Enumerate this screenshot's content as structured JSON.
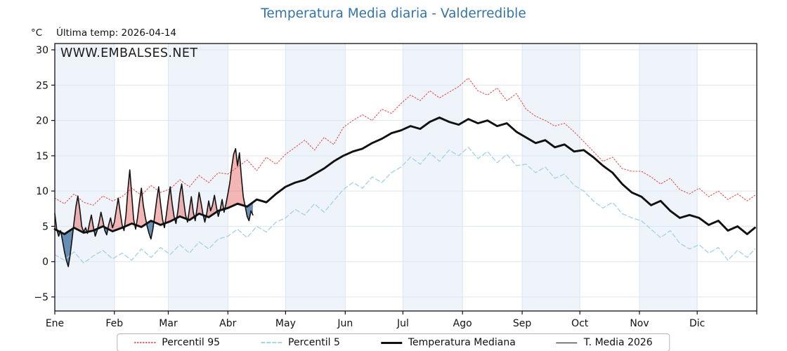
{
  "page": {
    "title": "Temperatura Media diaria - Valderredible",
    "unit_label": "°C",
    "last_temp_label": "Última temp: 2026-04-14",
    "watermark": "WWW.EMBALSES.NET"
  },
  "colors": {
    "accent": "#3274a8",
    "red_line": "#e94f4f",
    "blue_line": "#a9d3e7",
    "black_line": "#111111",
    "fill_above": "rgba(228,78,78,0.42)",
    "fill_below": "rgba(52,101,152,0.72)",
    "band": "#eef4fa",
    "grid": "#dce7f0",
    "frame": "#111111",
    "legend_border": "#b5b5b5"
  },
  "legend": {
    "items": [
      {
        "label": "Percentil 95",
        "sample": "dotted-red"
      },
      {
        "label": "Percentil 5",
        "sample": "dashed-blue"
      },
      {
        "label": "Temperatura Mediana",
        "sample": "thick-black"
      },
      {
        "label": "T. Media 2026",
        "sample": "thin-black"
      }
    ]
  },
  "chart_data": {
    "type": "line",
    "title": "Temperatura Media diaria - Valderredible",
    "xlabel": "",
    "ylabel": "°C",
    "ylim": [
      -7,
      31
    ],
    "grid": "on",
    "legend_position": "bottom center",
    "yticks": [
      -5,
      0,
      5,
      10,
      15,
      20,
      25,
      30
    ],
    "ytick_labels": [
      "−5",
      "0",
      "5",
      "10",
      "15",
      "20",
      "25",
      "30"
    ],
    "x_months": {
      "labels": [
        "Ene",
        "Feb",
        "Mar",
        "Abr",
        "May",
        "Jun",
        "Jul",
        "Ago",
        "Sep",
        "Oct",
        "Nov",
        "Dic"
      ],
      "boundaries_day_of_year": [
        0,
        31,
        59,
        90,
        120,
        151,
        181,
        212,
        243,
        273,
        304,
        334,
        365
      ]
    },
    "sample_days": [
      0,
      5,
      10,
      15,
      20,
      25,
      30,
      35,
      40,
      45,
      50,
      55,
      60,
      65,
      70,
      75,
      80,
      85,
      90,
      95,
      100,
      105,
      110,
      115,
      120,
      125,
      130,
      135,
      140,
      145,
      150,
      155,
      160,
      165,
      170,
      175,
      180,
      185,
      190,
      195,
      200,
      205,
      210,
      215,
      220,
      225,
      230,
      235,
      240,
      245,
      250,
      255,
      260,
      265,
      270,
      275,
      280,
      285,
      290,
      295,
      300,
      305,
      310,
      315,
      320,
      325,
      330,
      335,
      340,
      345,
      350,
      355,
      360,
      364
    ],
    "series": [
      {
        "name": "Percentil 95",
        "style": "dotted",
        "color": "#e94f4f",
        "values": [
          9.0,
          8.2,
          9.6,
          8.4,
          8.0,
          9.3,
          8.6,
          9.2,
          10.4,
          9.4,
          10.8,
          9.8,
          10.3,
          11.6,
          10.6,
          12.2,
          11.2,
          12.6,
          12.4,
          13.4,
          14.4,
          12.9,
          14.8,
          13.8,
          15.2,
          16.2,
          17.2,
          15.8,
          17.6,
          16.6,
          19.0,
          20.0,
          20.8,
          20.0,
          21.6,
          21.0,
          22.4,
          23.6,
          22.8,
          24.2,
          23.2,
          24.0,
          24.8,
          26.0,
          24.2,
          23.6,
          24.6,
          22.8,
          23.8,
          21.6,
          20.6,
          20.0,
          19.2,
          19.6,
          18.4,
          17.0,
          15.6,
          14.2,
          14.8,
          13.2,
          12.8,
          12.8,
          12.0,
          11.0,
          11.8,
          10.2,
          9.6,
          10.4,
          9.2,
          10.0,
          8.8,
          9.6,
          8.6,
          9.4
        ]
      },
      {
        "name": "Percentil 5",
        "style": "dashed",
        "color": "#a9d3e7",
        "values": [
          1.0,
          0.2,
          1.4,
          -0.2,
          0.8,
          1.6,
          0.4,
          1.2,
          0.2,
          1.8,
          0.6,
          2.0,
          1.0,
          2.4,
          1.2,
          2.8,
          1.8,
          3.2,
          3.6,
          4.6,
          3.4,
          5.0,
          4.2,
          5.6,
          6.2,
          7.4,
          6.6,
          8.2,
          7.0,
          8.6,
          10.2,
          11.2,
          10.4,
          12.0,
          11.2,
          12.6,
          13.4,
          14.8,
          13.8,
          15.4,
          14.2,
          15.8,
          15.0,
          16.2,
          14.6,
          15.6,
          14.0,
          15.2,
          13.6,
          13.8,
          12.6,
          13.4,
          11.8,
          12.4,
          10.8,
          10.0,
          8.6,
          7.6,
          8.4,
          6.8,
          6.2,
          5.8,
          4.6,
          3.4,
          4.4,
          2.6,
          1.8,
          2.4,
          1.2,
          2.0,
          0.2,
          1.6,
          0.6,
          1.8
        ]
      },
      {
        "name": "Temperatura Mediana",
        "style": "thick",
        "color": "#111111",
        "values": [
          4.6,
          3.9,
          4.8,
          4.1,
          4.4,
          5.0,
          4.3,
          4.8,
          5.4,
          4.9,
          5.8,
          5.2,
          5.7,
          6.4,
          5.9,
          6.8,
          6.3,
          7.2,
          7.6,
          8.2,
          7.8,
          8.8,
          8.4,
          9.6,
          10.6,
          11.2,
          11.6,
          12.4,
          13.2,
          14.2,
          15.0,
          15.6,
          16.0,
          16.8,
          17.4,
          18.2,
          18.6,
          19.2,
          18.8,
          19.8,
          20.4,
          19.8,
          19.4,
          20.2,
          19.6,
          20.0,
          19.2,
          19.6,
          18.4,
          17.6,
          16.8,
          17.2,
          16.2,
          16.6,
          15.6,
          15.8,
          14.8,
          13.6,
          12.6,
          11.0,
          9.8,
          9.2,
          8.0,
          8.6,
          7.2,
          6.2,
          6.6,
          6.2,
          5.2,
          5.8,
          4.4,
          5.0,
          3.9,
          4.8
        ]
      },
      {
        "name": "T. Media 2026",
        "style": "thin",
        "color": "#111111",
        "x_start": 0,
        "x_step": 1,
        "values": [
          6.8,
          4.6,
          3.6,
          4.4,
          3.0,
          1.4,
          0.2,
          -0.7,
          1.0,
          3.2,
          5.6,
          7.8,
          9.3,
          7.4,
          5.0,
          4.2,
          4.8,
          4.0,
          5.4,
          6.6,
          5.0,
          3.6,
          4.4,
          5.6,
          7.0,
          5.8,
          4.4,
          3.8,
          5.2,
          6.2,
          4.8,
          5.6,
          7.4,
          9.0,
          7.0,
          5.2,
          4.4,
          6.6,
          10.2,
          13.0,
          9.4,
          6.0,
          4.6,
          6.2,
          8.4,
          10.4,
          8.0,
          6.4,
          5.0,
          4.0,
          3.2,
          4.6,
          6.6,
          8.8,
          10.6,
          8.2,
          6.0,
          4.8,
          6.6,
          8.8,
          10.6,
          8.2,
          6.4,
          5.4,
          7.2,
          9.6,
          11.0,
          8.6,
          6.6,
          5.6,
          7.4,
          9.2,
          7.0,
          5.8,
          7.6,
          9.8,
          8.4,
          6.8,
          5.6,
          6.8,
          8.6,
          7.2,
          8.0,
          9.4,
          7.8,
          6.4,
          7.4,
          8.8,
          7.0,
          8.2,
          9.6,
          11.2,
          13.4,
          15.2,
          16.0,
          13.6,
          15.4,
          12.0,
          9.2,
          7.8,
          6.4,
          5.8,
          7.2,
          6.6
        ]
      }
    ],
    "fills": {
      "description": "area between T. Media 2026 and Temperatura Mediana",
      "above_color": "rgba(228,78,78,0.42)",
      "below_color": "rgba(52,101,152,0.72)"
    }
  }
}
